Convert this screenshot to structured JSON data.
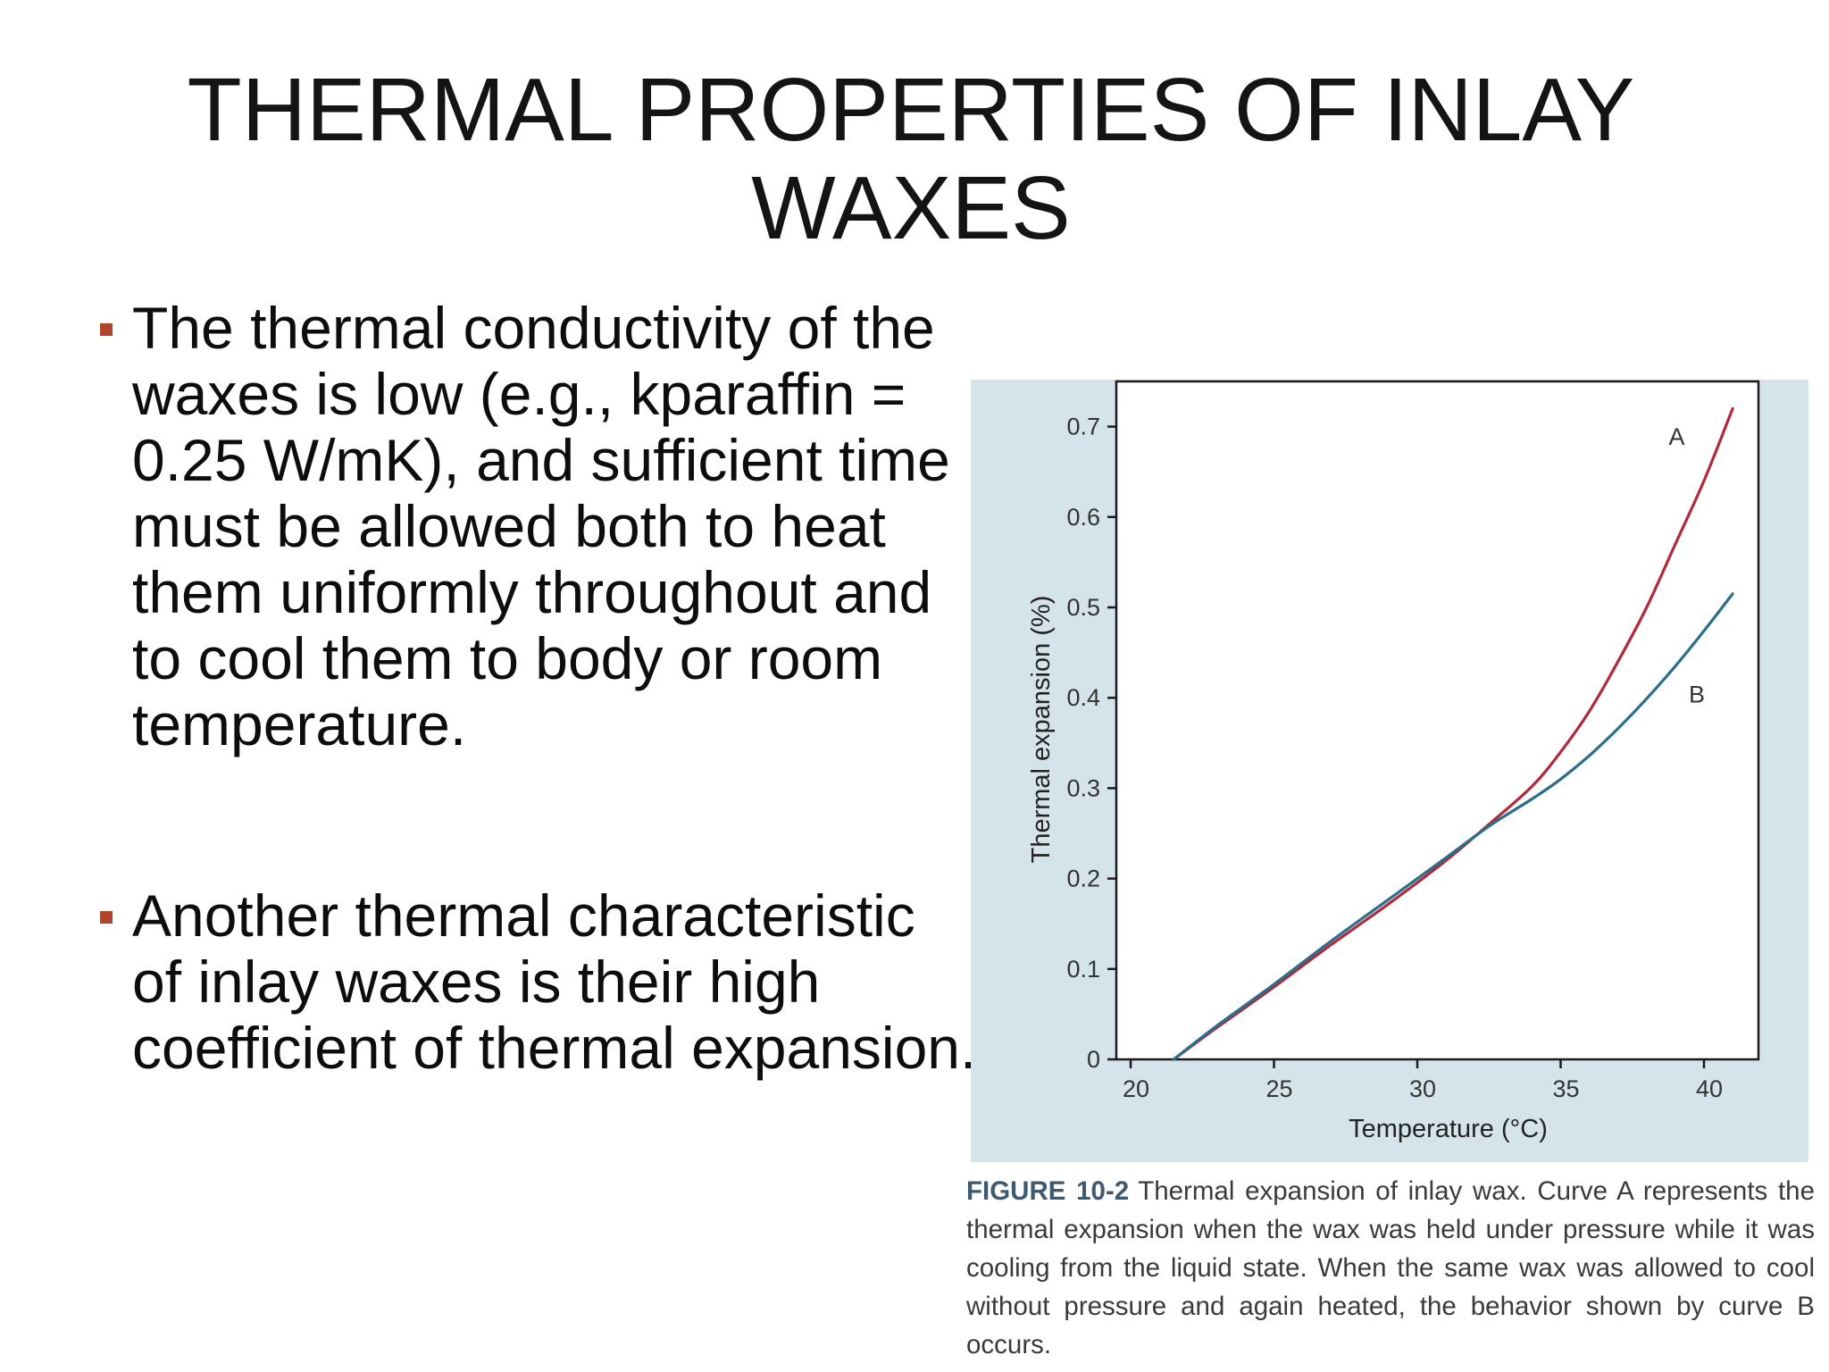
{
  "slide": {
    "title": "THERMAL PROPERTIES OF INLAY WAXES",
    "bullets": [
      "The thermal conductivity of the waxes is low (e.g., kparaffin = 0.25 W/mK), and sufficient time must be allowed both to heat them uniformly throughout and to cool them to body or room temperature.",
      "Another thermal characteristic of inlay waxes is their high coefficient of thermal expansion."
    ]
  },
  "figure": {
    "label": "FIGURE 10-2",
    "caption": "Thermal expansion of inlay wax. Curve A represents the thermal expansion when the wax was held under pressure while it was cooling from the liquid state. When the same wax was allowed to cool without pressure and again heated, the behavior shown by curve B occurs."
  },
  "colors": {
    "bullet_marker": "#b1452c",
    "panel_background": "#d5e3ea",
    "curve_a": "#b02a3c",
    "curve_b": "#2a6e8a",
    "caption_label": "#3e5a70"
  },
  "chart_data": {
    "type": "line",
    "title": "",
    "xlabel": "Temperature (°C)",
    "ylabel": "Thermal expansion (%)",
    "xlim": [
      19.5,
      41.9
    ],
    "ylim": [
      0,
      0.75
    ],
    "x_ticks": [
      20,
      25,
      30,
      35,
      40
    ],
    "x_tick_labels": [
      "20",
      "25",
      "30",
      "35",
      "40"
    ],
    "y_ticks": [
      0,
      0.1,
      0.2,
      0.3,
      0.4,
      0.5,
      0.6,
      0.7
    ],
    "y_tick_labels": [
      "0",
      "0.1",
      "0.2",
      "0.3",
      "0.4",
      "0.5",
      "0.6",
      "0.7"
    ],
    "grid": false,
    "legend": "none",
    "series": [
      {
        "name": "A",
        "x": [
          21.5,
          23,
          25,
          27,
          29,
          31,
          32.5,
          34,
          35,
          36,
          37,
          38,
          39,
          40,
          41
        ],
        "y": [
          0,
          0.035,
          0.08,
          0.127,
          0.172,
          0.22,
          0.26,
          0.302,
          0.34,
          0.385,
          0.44,
          0.5,
          0.57,
          0.64,
          0.72
        ]
      },
      {
        "name": "B",
        "x": [
          21.5,
          23,
          25,
          27,
          29,
          31,
          32.5,
          34,
          35,
          36,
          37,
          38,
          39,
          40,
          41
        ],
        "y": [
          0,
          0.037,
          0.083,
          0.131,
          0.177,
          0.223,
          0.258,
          0.288,
          0.31,
          0.336,
          0.366,
          0.399,
          0.435,
          0.474,
          0.515
        ]
      }
    ]
  }
}
